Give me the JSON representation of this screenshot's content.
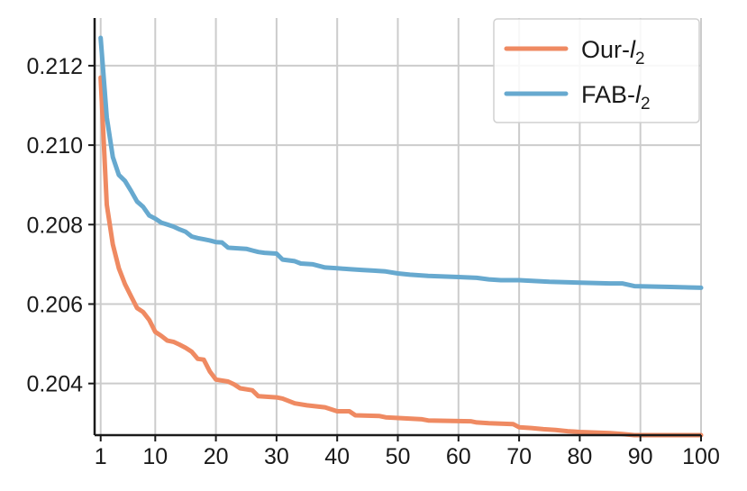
{
  "chart_data": {
    "type": "line",
    "title": "",
    "xlabel": "",
    "ylabel": "",
    "xlim": [
      0,
      100
    ],
    "ylim": [
      0.2027,
      0.2132
    ],
    "x_ticks": [
      1,
      10,
      20,
      30,
      40,
      50,
      60,
      70,
      80,
      90,
      100
    ],
    "x_tick_labels": [
      "1",
      "10",
      "20",
      "30",
      "40",
      "50",
      "60",
      "70",
      "80",
      "90",
      "100"
    ],
    "y_ticks": [
      0.204,
      0.206,
      0.208,
      0.21,
      0.212
    ],
    "y_tick_labels": [
      "0.204",
      "0.206",
      "0.208",
      "0.210",
      "0.212"
    ],
    "grid": true,
    "legend": {
      "placement": "top-right"
    },
    "series": [
      {
        "name": "Our-",
        "name_sub": "l",
        "name_subscript": "2",
        "color": "#ef8a62",
        "x": [
          1,
          2,
          3,
          4,
          5,
          6,
          7,
          8,
          9,
          10,
          11,
          12,
          13,
          14,
          15,
          16,
          17,
          18,
          19,
          20,
          22,
          23,
          24,
          26,
          27,
          30,
          31,
          33,
          35,
          38,
          40,
          42,
          43,
          47,
          48,
          54,
          55,
          62,
          63,
          65,
          69,
          70,
          72,
          74,
          76,
          78,
          80,
          85,
          87,
          89,
          95,
          100
        ],
        "y": [
          0.2117,
          0.2085,
          0.2075,
          0.2069,
          0.2065,
          0.2062,
          0.2059,
          0.2058,
          0.2056,
          0.2053,
          0.2052,
          0.20508,
          0.20505,
          0.20498,
          0.2049,
          0.2048,
          0.20462,
          0.2046,
          0.2043,
          0.2041,
          0.20405,
          0.20398,
          0.20388,
          0.20383,
          0.20368,
          0.20365,
          0.20362,
          0.2035,
          0.20345,
          0.2034,
          0.2033,
          0.2033,
          0.2032,
          0.20318,
          0.20315,
          0.2031,
          0.20307,
          0.20305,
          0.20302,
          0.203,
          0.20298,
          0.2029,
          0.20288,
          0.20285,
          0.20283,
          0.2028,
          0.20278,
          0.20275,
          0.20273,
          0.2027,
          0.2027,
          0.2027
        ]
      },
      {
        "name": "FAB-",
        "name_sub": "l",
        "name_subscript": "2",
        "color": "#67a9cf",
        "x": [
          1,
          2,
          3,
          4,
          5,
          6,
          7,
          8,
          9,
          10,
          11,
          12,
          13,
          14,
          15,
          16,
          17,
          18,
          19,
          20,
          21,
          22,
          25,
          26,
          27,
          28,
          30,
          31,
          33,
          34,
          36,
          38,
          40,
          42,
          44,
          46,
          48,
          50,
          52,
          55,
          60,
          63,
          65,
          67,
          70,
          75,
          80,
          85,
          87,
          89,
          95,
          100
        ],
        "y": [
          0.2127,
          0.2107,
          0.2097,
          0.20925,
          0.2091,
          0.20885,
          0.20858,
          0.20845,
          0.20823,
          0.20815,
          0.20805,
          0.208,
          0.20795,
          0.20788,
          0.20782,
          0.2077,
          0.20766,
          0.20763,
          0.2076,
          0.20756,
          0.20755,
          0.20742,
          0.20739,
          0.20735,
          0.20731,
          0.20729,
          0.20727,
          0.20712,
          0.20708,
          0.20702,
          0.207,
          0.20692,
          0.2069,
          0.20688,
          0.20686,
          0.20684,
          0.20682,
          0.20677,
          0.20674,
          0.20671,
          0.20668,
          0.20666,
          0.20662,
          0.2066,
          0.2066,
          0.20656,
          0.20654,
          0.20652,
          0.20652,
          0.20645,
          0.20643,
          0.20641
        ]
      }
    ]
  }
}
